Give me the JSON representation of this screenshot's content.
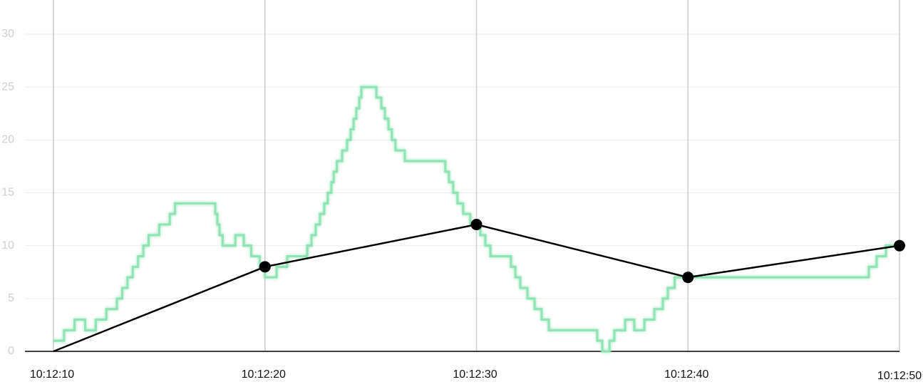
{
  "chart_data": {
    "type": "line",
    "xlim": [
      10,
      50
    ],
    "xticks": [
      {
        "value": 10,
        "label": "10:12:10"
      },
      {
        "value": 20,
        "label": "10:12:20"
      },
      {
        "value": 30,
        "label": "10:12:30"
      },
      {
        "value": 40,
        "label": "10:12:40"
      },
      {
        "value": 50,
        "label": "10:12:50"
      }
    ],
    "ylim": [
      0,
      30
    ],
    "yticks": [
      0,
      5,
      10,
      15,
      20,
      25,
      30
    ],
    "grid": true,
    "series": [
      {
        "color": "#8fe3b5",
        "step": true,
        "x": [
          10,
          10.5,
          11,
          11.5,
          12,
          12.5,
          13,
          13.25,
          13.5,
          13.75,
          14,
          14.25,
          14.5,
          15,
          15.5,
          15.75,
          17.65,
          17.75,
          17.85,
          18,
          18.6,
          19,
          19.35,
          19.75,
          20,
          20.55,
          21.05,
          22,
          22.2,
          22.4,
          22.6,
          22.8,
          22.97,
          23.14,
          23.25,
          23.4,
          23.65,
          23.88,
          24.05,
          24.19,
          24.32,
          24.46,
          24.56,
          25.27,
          25.5,
          25.67,
          25.84,
          26,
          26.17,
          26.61,
          28.53,
          28.7,
          28.9,
          29.1,
          29.37,
          29.71,
          30.18,
          30.42,
          30.66,
          31.63,
          31.84,
          32.07,
          32.41,
          32.75,
          33.08,
          33.42,
          35.71,
          35.95,
          36.29,
          36.52,
          37.03,
          37.46,
          37.94,
          38.41,
          38.81,
          39.05,
          39.37,
          48.55,
          48.92,
          49.36,
          50
        ],
        "values": [
          1,
          2,
          3,
          2,
          3,
          4,
          5,
          6,
          7,
          8,
          9,
          10,
          11,
          12,
          13,
          14,
          13,
          12,
          11,
          10,
          11,
          10,
          9,
          8,
          7,
          8,
          9,
          10,
          11,
          12,
          13,
          14,
          15,
          16,
          17,
          18,
          19,
          20,
          21,
          22,
          23,
          24,
          25,
          24,
          23,
          22,
          21,
          20,
          19,
          18,
          17,
          16,
          15,
          14,
          13,
          12,
          11,
          10,
          9,
          8,
          7,
          6,
          5,
          4,
          3,
          2,
          1,
          0,
          1,
          2,
          3,
          2,
          3,
          4,
          5,
          6,
          7,
          8,
          9,
          10,
          10
        ]
      },
      {
        "color": "#000000",
        "markers": true,
        "x": [
          10,
          20,
          30,
          40,
          50
        ],
        "values": [
          0,
          8,
          12,
          7,
          10
        ]
      }
    ]
  }
}
